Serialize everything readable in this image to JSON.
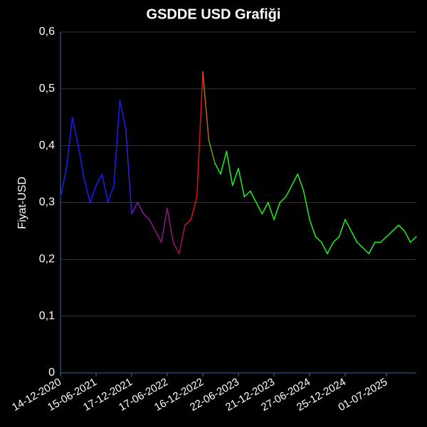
{
  "chart_data": {
    "type": "line",
    "title": "GSDDE USD Grafiği",
    "y_label": "Fiyat-USD",
    "categories": [
      "14-12-2020",
      null,
      null,
      null,
      null,
      null,
      "15-06-2021",
      null,
      null,
      null,
      null,
      null,
      "17-12-2021",
      null,
      null,
      null,
      null,
      null,
      "17-06-2022",
      null,
      null,
      null,
      null,
      null,
      "16-12-2022",
      null,
      null,
      null,
      null,
      null,
      "22-06-2023",
      null,
      null,
      null,
      null,
      null,
      "21-12-2023",
      null,
      null,
      null,
      null,
      null,
      "27-06-2024",
      null,
      null,
      null,
      null,
      null,
      "25-12-2024",
      null,
      null,
      null,
      null,
      null,
      null,
      "01-07-2025",
      null,
      null,
      null,
      null,
      null
    ],
    "values": [
      0.31,
      0.36,
      0.45,
      0.4,
      0.34,
      0.3,
      0.33,
      0.35,
      0.3,
      0.33,
      0.48,
      0.43,
      0.28,
      0.3,
      0.28,
      0.27,
      0.25,
      0.23,
      0.29,
      0.23,
      0.21,
      0.26,
      0.27,
      0.31,
      0.53,
      0.41,
      0.37,
      0.35,
      0.39,
      0.33,
      0.36,
      0.31,
      0.32,
      0.3,
      0.28,
      0.3,
      0.27,
      0.3,
      0.31,
      0.33,
      0.35,
      0.32,
      0.27,
      0.24,
      0.23,
      0.21,
      0.23,
      0.24,
      0.27,
      0.25,
      0.23,
      0.22,
      0.21,
      0.23,
      0.23,
      0.24,
      0.25,
      0.26,
      0.25,
      0.23,
      0.24
    ],
    "point_colors": [
      "#1a1aff",
      "#1a1aff",
      "#1a1aff",
      "#1a1aff",
      "#1a1aff",
      "#1a1aff",
      "#1a1aff",
      "#1a1aff",
      "#1a1aff",
      "#1a1aff",
      "#1a1aff",
      "#3a1ae0",
      "#7a1ab0",
      "#7a1ab0",
      "#8b1a8b",
      "#8b1a8b",
      "#8b1a8b",
      "#8b1a8b",
      "#9a1478",
      "#a0106a",
      "#a0106a",
      "#c01040",
      "#e01010",
      "#e01010",
      "#b86a10",
      "#6aa010",
      "#22ee22",
      "#22ee22",
      "#22ee22",
      "#22ee22",
      "#22ee22",
      "#22ee22",
      "#22ee22",
      "#22ee22",
      "#22ee22",
      "#22ee22",
      "#22ee22",
      "#22ee22",
      "#22ee22",
      "#22ee22",
      "#22ee22",
      "#22ee22",
      "#22ee22",
      "#22ee22",
      "#22ee22",
      "#22ee22",
      "#22ee22",
      "#22ee22",
      "#22ee22",
      "#22ee22",
      "#22ee22",
      "#22ee22",
      "#22ee22",
      "#22ee22",
      "#22ee22",
      "#22ee22",
      "#22ee22",
      "#22ee22",
      "#22ee22",
      "#22ee22",
      "#22ee22"
    ],
    "ylim": [
      0,
      0.6
    ],
    "yticks": [
      0,
      {
        "value": 0.1,
        "label": "0,1"
      },
      {
        "value": 0.2,
        "label": "0,2"
      },
      {
        "value": 0.3,
        "label": "0,3"
      },
      {
        "value": 0.4,
        "label": "0,4"
      },
      {
        "value": 0.5,
        "label": "0,5"
      },
      {
        "value": 0.6,
        "label": "0,6"
      }
    ],
    "grid": true
  }
}
